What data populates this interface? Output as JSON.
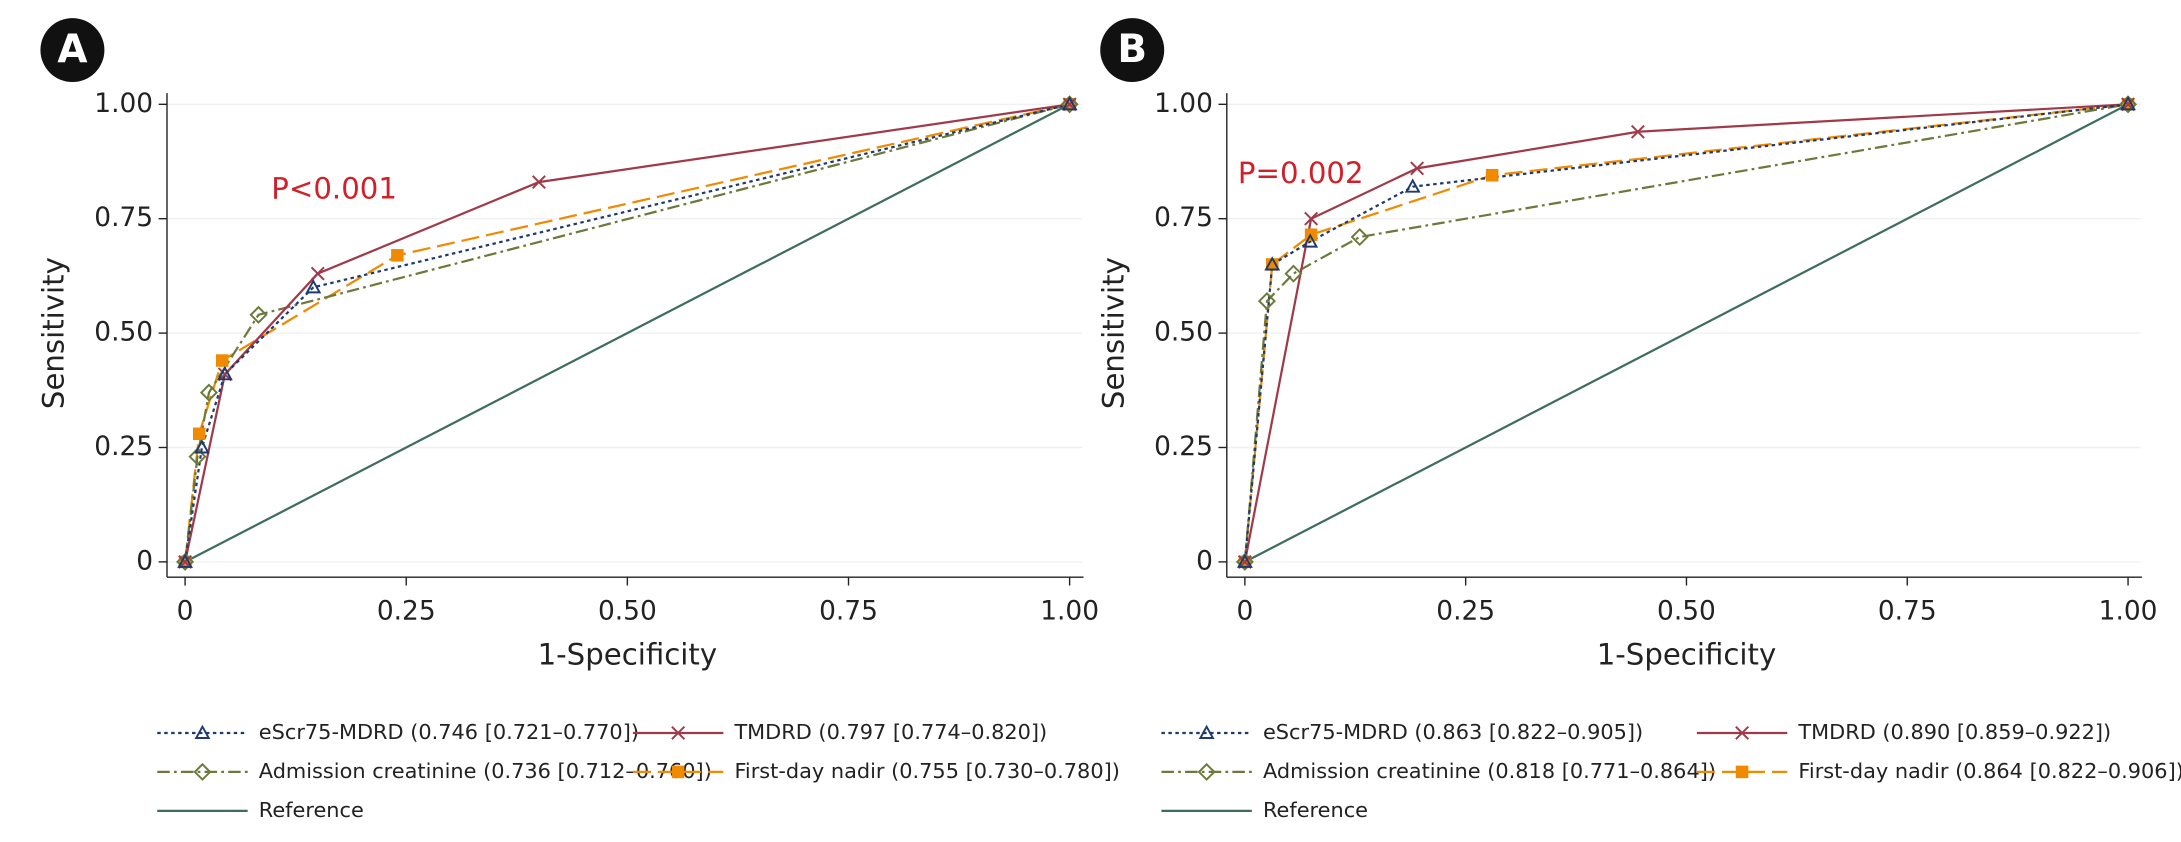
{
  "chart_data": [
    {
      "type": "line",
      "panel_label": "A",
      "annotation": "P<0.001",
      "xlabel": "1-Specificity",
      "ylabel": "Sensitivity",
      "xlim": [
        0,
        1
      ],
      "ylim": [
        0,
        1
      ],
      "grid": true,
      "xticks": [
        0,
        0.25,
        {
          "value": 0.5,
          "label": "0.50"
        },
        0.75,
        {
          "value": 1,
          "label": "1.00"
        }
      ],
      "yticks": [
        0,
        0.25,
        {
          "value": 0.5,
          "label": "0.50"
        },
        0.75,
        {
          "value": 1,
          "label": "1.00"
        }
      ],
      "series": [
        {
          "name": "eScr75-MDRD (0.746 [0.721–0.770])",
          "color": "#1f3a6e",
          "line_style": "dotted",
          "marker": "triangle",
          "x": [
            0,
            0.019,
            0.045,
            0.145,
            1
          ],
          "values": [
            0,
            0.25,
            0.41,
            0.6,
            1
          ]
        },
        {
          "name": "TMDRD (0.797 [0.774–0.820])",
          "color": "#a03a4a",
          "line_style": "solid",
          "marker": "x",
          "x": [
            0,
            0.045,
            0.15,
            0.4,
            1
          ],
          "values": [
            0,
            0.41,
            0.63,
            0.83,
            1
          ]
        },
        {
          "name": "Admission creatinine (0.736 [0.712–0.760])",
          "color": "#6b7a3a",
          "line_style": "dashdot",
          "marker": "diamond",
          "x": [
            0,
            0.014,
            0.027,
            0.083,
            1
          ],
          "values": [
            0,
            0.23,
            0.37,
            0.54,
            1
          ]
        },
        {
          "name": "First-day nadir (0.755 [0.730–0.780])",
          "color": "#f08a00",
          "line_style": "longdash",
          "marker": "square",
          "x": [
            0,
            0.016,
            0.042,
            0.24,
            1
          ],
          "values": [
            0,
            0.28,
            0.44,
            0.67,
            1
          ]
        },
        {
          "name": "Reference",
          "color": "#3e6e5a",
          "line_style": "solid",
          "x": [
            0,
            1
          ],
          "values": [
            0,
            1
          ]
        }
      ]
    },
    {
      "type": "line",
      "panel_label": "B",
      "annotation": "P=0.002",
      "xlabel": "1-Specificity",
      "ylabel": "Sensitivity",
      "xlim": [
        0,
        1
      ],
      "ylim": [
        0,
        1
      ],
      "grid": true,
      "xticks": [
        0,
        0.25,
        {
          "value": 0.5,
          "label": "0.50"
        },
        0.75,
        {
          "value": 1,
          "label": "1.00"
        }
      ],
      "yticks": [
        0,
        0.25,
        {
          "value": 0.5,
          "label": "0.50"
        },
        0.75,
        {
          "value": 1,
          "label": "1.00"
        }
      ],
      "series": [
        {
          "name": "eScr75-MDRD (0.863 [0.822–0.905])",
          "color": "#1f3a6e",
          "line_style": "dotted",
          "marker": "triangle",
          "x": [
            0,
            0.031,
            0.074,
            0.19,
            1
          ],
          "values": [
            0,
            0.65,
            0.7,
            0.82,
            1
          ]
        },
        {
          "name": "TMDRD (0.890 [0.859–0.922])",
          "color": "#a03a4a",
          "line_style": "solid",
          "marker": "x",
          "x": [
            0,
            0.075,
            0.195,
            0.445,
            1
          ],
          "values": [
            0,
            0.75,
            0.86,
            0.94,
            1
          ]
        },
        {
          "name": "Admission creatinine (0.818 [0.771–0.864])",
          "color": "#6b7a3a",
          "line_style": "dashdot",
          "marker": "diamond",
          "x": [
            0,
            0.025,
            0.055,
            0.13,
            1
          ],
          "values": [
            0,
            0.57,
            0.63,
            0.71,
            1
          ]
        },
        {
          "name": "First-day nadir (0.864 [0.822–0.906])",
          "color": "#f08a00",
          "line_style": "longdash",
          "marker": "square",
          "x": [
            0,
            0.031,
            0.075,
            0.28,
            1
          ],
          "values": [
            0,
            0.65,
            0.715,
            0.845,
            1
          ]
        },
        {
          "name": "Reference",
          "color": "#3e6e5a",
          "line_style": "solid",
          "x": [
            0,
            1
          ],
          "values": [
            0,
            1
          ]
        }
      ]
    }
  ]
}
